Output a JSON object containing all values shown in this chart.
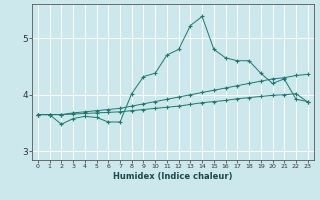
{
  "xlabel": "Humidex (Indice chaleur)",
  "ylabel": "",
  "bg_color": "#cce8ec",
  "grid_color": "#ffffff",
  "line_color": "#1a7a6e",
  "xlim": [
    -0.5,
    23.5
  ],
  "ylim": [
    2.85,
    5.6
  ],
  "yticks": [
    3,
    4,
    5
  ],
  "xticks": [
    0,
    1,
    2,
    3,
    4,
    5,
    6,
    7,
    8,
    9,
    10,
    11,
    12,
    13,
    14,
    15,
    16,
    17,
    18,
    19,
    20,
    21,
    22,
    23
  ],
  "series": [
    {
      "x": [
        0,
        1,
        2,
        3,
        4,
        5,
        6,
        7,
        8,
        9,
        10,
        11,
        12,
        13,
        14,
        15,
        16,
        17,
        18,
        19,
        20,
        21,
        22,
        23
      ],
      "y": [
        3.65,
        3.65,
        3.48,
        3.58,
        3.62,
        3.6,
        3.52,
        3.52,
        4.02,
        4.32,
        4.38,
        4.7,
        4.8,
        5.22,
        5.38,
        4.8,
        4.65,
        4.6,
        4.6,
        4.38,
        4.2,
        4.28,
        3.92,
        3.88
      ]
    },
    {
      "x": [
        0,
        1,
        2,
        3,
        4,
        5,
        6,
        7,
        8,
        9,
        10,
        11,
        12,
        13,
        14,
        15,
        16,
        17,
        18,
        19,
        20,
        21,
        22,
        23
      ],
      "y": [
        3.65,
        3.65,
        3.65,
        3.68,
        3.7,
        3.72,
        3.74,
        3.76,
        3.8,
        3.84,
        3.88,
        3.92,
        3.96,
        4.0,
        4.04,
        4.08,
        4.12,
        4.16,
        4.2,
        4.24,
        4.28,
        4.3,
        4.34,
        4.36
      ]
    },
    {
      "x": [
        0,
        1,
        2,
        3,
        4,
        5,
        6,
        7,
        8,
        9,
        10,
        11,
        12,
        13,
        14,
        15,
        16,
        17,
        18,
        19,
        20,
        21,
        22,
        23
      ],
      "y": [
        3.65,
        3.65,
        3.65,
        3.66,
        3.67,
        3.68,
        3.69,
        3.7,
        3.72,
        3.74,
        3.76,
        3.78,
        3.8,
        3.83,
        3.86,
        3.88,
        3.9,
        3.93,
        3.95,
        3.97,
        3.99,
        4.0,
        4.02,
        3.87
      ]
    }
  ]
}
